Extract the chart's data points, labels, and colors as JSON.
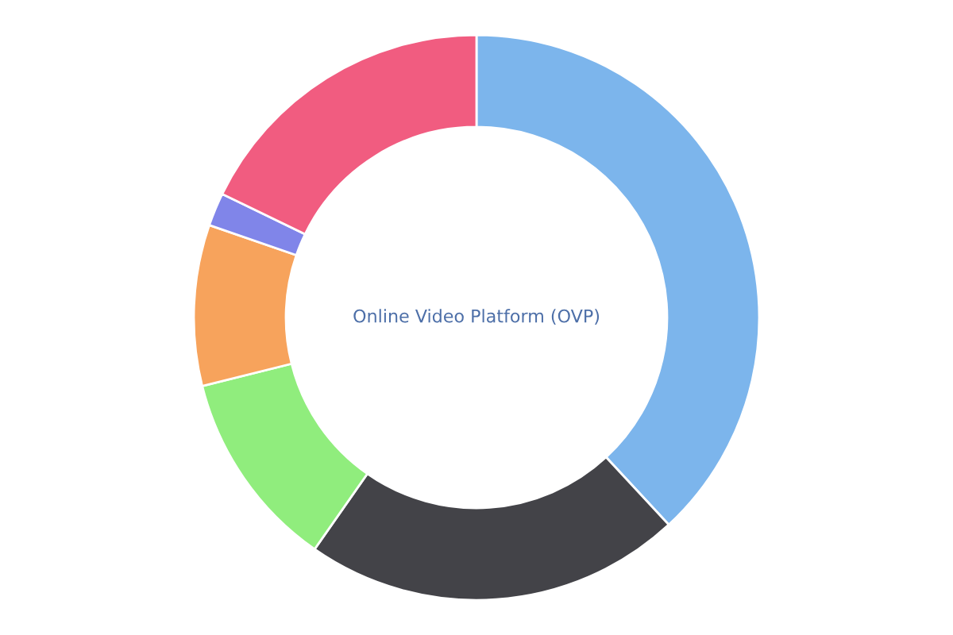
{
  "chart_data": {
    "type": "donut",
    "title": "Online Video Platform (OVP)",
    "categories": [
      null,
      null,
      null,
      null,
      null,
      null
    ],
    "values": [
      38.1,
      21.6,
      11.4,
      9.2,
      1.9,
      17.8
    ],
    "colors": [
      "#7cb5ec",
      "#434348",
      "#90ed7d",
      "#f7a35c",
      "#8085e9",
      "#f15c80"
    ]
  }
}
